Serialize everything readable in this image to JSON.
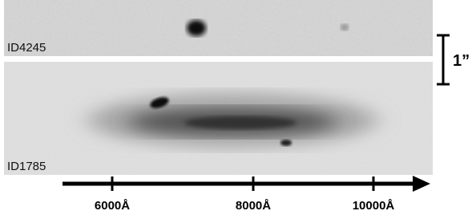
{
  "panels": [
    {
      "label": "ID4245"
    },
    {
      "label": "ID1785"
    }
  ],
  "scale_bar": {
    "label": "1”"
  },
  "axis": {
    "tick_labels": [
      "6000Å",
      "8000Å",
      "10000Å"
    ]
  }
}
